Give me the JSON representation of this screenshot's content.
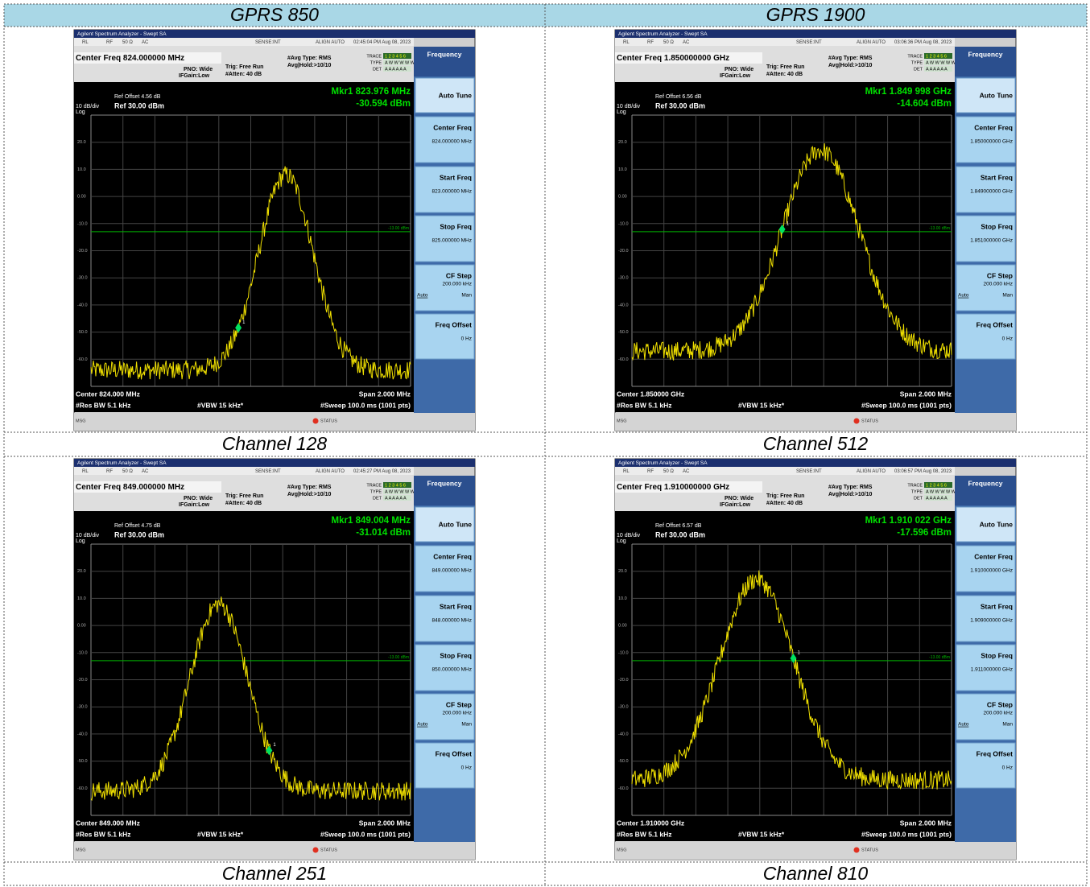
{
  "header": [
    "GPRS 850",
    "GPRS 1900"
  ],
  "panels": [
    {
      "window_title": "Agilent Spectrum Analyzer - Swept SA",
      "status_bar": [
        "RL",
        "RF",
        "50 Ω",
        "AC",
        "SENSE:INT",
        "ALIGN AUTO",
        "02:45:04 PM Aug 08, 2023"
      ],
      "center_freq": "Center Freq 824.000000 MHz",
      "settings": [
        "PNO: Wide",
        "IFGain:Low",
        "Trig: Free Run",
        "#Atten: 40 dB",
        "#Avg Type: RMS",
        "Avg|Hold:>10/10"
      ],
      "trace_info": [
        [
          "TRACE",
          "1 2 3 4 5 6"
        ],
        [
          "TYPE",
          "A W W W W W"
        ],
        [
          "DET",
          "A A A A A A"
        ]
      ],
      "ref_offset": "Ref Offset 4.56 dB",
      "scale": "10 dB/div",
      "log": "Log",
      "ref_level": "Ref 30.00 dBm",
      "marker_freq": "Mkr1 823.976 MHz",
      "marker_level": "-30.594 dBm",
      "marker_id": "1",
      "y_labels": [
        "20.0",
        "10.0",
        "0.00",
        "-10.0",
        "-20.0",
        "-30.0",
        "-40.0",
        "-50.0",
        "-60.0"
      ],
      "limit_label": "-13.00 dBm",
      "footer": {
        "center": "Center 824.000 MHz",
        "span": "Span 2.000 MHz",
        "rbw": "#Res BW 5.1 kHz",
        "vbw": "#VBW 15 kHz*",
        "sweep": "#Sweep 100.0 ms (1001 pts)"
      },
      "msg": "MSG",
      "status": "STATUS",
      "softkeys": {
        "menu": "Frequency",
        "keys": [
          {
            "label": "Auto Tune"
          },
          {
            "label": "Center Freq",
            "value": "824.000000 MHz"
          },
          {
            "label": "Start Freq",
            "value": "823.000000 MHz"
          },
          {
            "label": "Stop Freq",
            "value": "825.000000 MHz"
          },
          {
            "label": "CF Step",
            "value": "200.000 kHz",
            "auto": "Auto",
            "man": "Man"
          },
          {
            "label": "Freq Offset",
            "value": "0 Hz"
          }
        ]
      },
      "caption": "Channel 128"
    },
    {
      "window_title": "Agilent Spectrum Analyzer - Swept SA",
      "status_bar": [
        "RL",
        "RF",
        "50 Ω",
        "AC",
        "SENSE:INT",
        "ALIGN AUTO",
        "03:06:36 PM Aug 08, 2023"
      ],
      "center_freq": "Center Freq 1.850000000 GHz",
      "settings": [
        "PNO: Wide",
        "IFGain:Low",
        "Trig: Free Run",
        "#Atten: 40 dB",
        "#Avg Type: RMS",
        "Avg|Hold:>10/10"
      ],
      "trace_info": [
        [
          "TRACE",
          "1 2 3 4 5 6"
        ],
        [
          "TYPE",
          "A W W W W W"
        ],
        [
          "DET",
          "A A A A A A"
        ]
      ],
      "ref_offset": "Ref Offset 6.56 dB",
      "scale": "10 dB/div",
      "log": "Log",
      "ref_level": "Ref 30.00 dBm",
      "marker_freq": "Mkr1 1.849 998 GHz",
      "marker_level": "-14.604 dBm",
      "marker_id": "1",
      "y_labels": [
        "20.0",
        "10.0",
        "0.00",
        "-10.0",
        "-20.0",
        "-30.0",
        "-40.0",
        "-50.0",
        "-60.0"
      ],
      "limit_label": "-13.00 dBm",
      "footer": {
        "center": "Center 1.850000 GHz",
        "span": "Span 2.000 MHz",
        "rbw": "#Res BW 5.1 kHz",
        "vbw": "#VBW 15 kHz*",
        "sweep": "#Sweep 100.0 ms (1001 pts)"
      },
      "msg": "MSG",
      "status": "STATUS",
      "softkeys": {
        "menu": "Frequency",
        "keys": [
          {
            "label": "Auto Tune"
          },
          {
            "label": "Center Freq",
            "value": "1.850000000 GHz"
          },
          {
            "label": "Start Freq",
            "value": "1.849000000 GHz"
          },
          {
            "label": "Stop Freq",
            "value": "1.851000000 GHz"
          },
          {
            "label": "CF Step",
            "value": "200.000 kHz",
            "auto": "Auto",
            "man": "Man"
          },
          {
            "label": "Freq Offset",
            "value": "0 Hz"
          }
        ]
      },
      "caption": "Channel 512"
    },
    {
      "window_title": "Agilent Spectrum Analyzer - Swept SA",
      "status_bar": [
        "RL",
        "RF",
        "50 Ω",
        "AC",
        "SENSE:INT",
        "ALIGN AUTO",
        "02:45:27 PM Aug 08, 2023"
      ],
      "center_freq": "Center Freq 849.000000 MHz",
      "settings": [
        "PNO: Wide",
        "IFGain:Low",
        "Trig: Free Run",
        "#Atten: 40 dB",
        "#Avg Type: RMS",
        "Avg|Hold:>10/10"
      ],
      "trace_info": [
        [
          "TRACE",
          "1 2 3 4 5 6"
        ],
        [
          "TYPE",
          "A W W W W W"
        ],
        [
          "DET",
          "A A A A A A"
        ]
      ],
      "ref_offset": "Ref Offset 4.75 dB",
      "scale": "10 dB/div",
      "log": "Log",
      "ref_level": "Ref 30.00 dBm",
      "marker_freq": "Mkr1 849.004 MHz",
      "marker_level": "-31.014 dBm",
      "marker_id": "1",
      "y_labels": [
        "20.0",
        "10.0",
        "0.00",
        "-10.0",
        "-20.0",
        "-30.0",
        "-40.0",
        "-50.0",
        "-60.0"
      ],
      "limit_label": "-13.00 dBm",
      "footer": {
        "center": "Center 849.000 MHz",
        "span": "Span 2.000 MHz",
        "rbw": "#Res BW 5.1 kHz",
        "vbw": "#VBW 15 kHz*",
        "sweep": "#Sweep 100.0 ms (1001 pts)"
      },
      "msg": "MSG",
      "status": "STATUS",
      "softkeys": {
        "menu": "Frequency",
        "keys": [
          {
            "label": "Auto Tune"
          },
          {
            "label": "Center Freq",
            "value": "849.000000 MHz"
          },
          {
            "label": "Start Freq",
            "value": "848.000000 MHz"
          },
          {
            "label": "Stop Freq",
            "value": "850.000000 MHz"
          },
          {
            "label": "CF Step",
            "value": "200.000 kHz",
            "auto": "Auto",
            "man": "Man"
          },
          {
            "label": "Freq Offset",
            "value": "0 Hz"
          }
        ]
      },
      "caption": "Channel 251"
    },
    {
      "window_title": "Agilent Spectrum Analyzer - Swept SA",
      "status_bar": [
        "RL",
        "RF",
        "50 Ω",
        "AC",
        "SENSE:INT",
        "ALIGN AUTO",
        "03:06:57 PM Aug 08, 2023"
      ],
      "center_freq": "Center Freq 1.910000000 GHz",
      "settings": [
        "PNO: Wide",
        "IFGain:Low",
        "Trig: Free Run",
        "#Atten: 40 dB",
        "#Avg Type: RMS",
        "Avg|Hold:>10/10"
      ],
      "trace_info": [
        [
          "TRACE",
          "1 2 3 4 5 6"
        ],
        [
          "TYPE",
          "A W W W W W"
        ],
        [
          "DET",
          "A A A A A A"
        ]
      ],
      "ref_offset": "Ref Offset 6.57 dB",
      "scale": "10 dB/div",
      "log": "Log",
      "ref_level": "Ref 30.00 dBm",
      "marker_freq": "Mkr1 1.910 022 GHz",
      "marker_level": "-17.596 dBm",
      "marker_id": "1",
      "y_labels": [
        "20.0",
        "10.0",
        "0.00",
        "-10.0",
        "-20.0",
        "-30.0",
        "-40.0",
        "-50.0",
        "-60.0"
      ],
      "limit_label": "-13.00 dBm",
      "footer": {
        "center": "Center 1.910000 GHz",
        "span": "Span 2.000 MHz",
        "rbw": "#Res BW 5.1 kHz",
        "vbw": "#VBW 15 kHz*",
        "sweep": "#Sweep 100.0 ms (1001 pts)"
      },
      "msg": "MSG",
      "status": "STATUS",
      "softkeys": {
        "menu": "Frequency",
        "keys": [
          {
            "label": "Auto Tune"
          },
          {
            "label": "Center Freq",
            "value": "1.910000000 GHz"
          },
          {
            "label": "Start Freq",
            "value": "1.909000000 GHz"
          },
          {
            "label": "Stop Freq",
            "value": "1.911000000 GHz"
          },
          {
            "label": "CF Step",
            "value": "200.000 kHz",
            "auto": "Auto",
            "man": "Man"
          },
          {
            "label": "Freq Offset",
            "value": "0 Hz"
          }
        ]
      },
      "caption": "Channel 810"
    }
  ]
}
